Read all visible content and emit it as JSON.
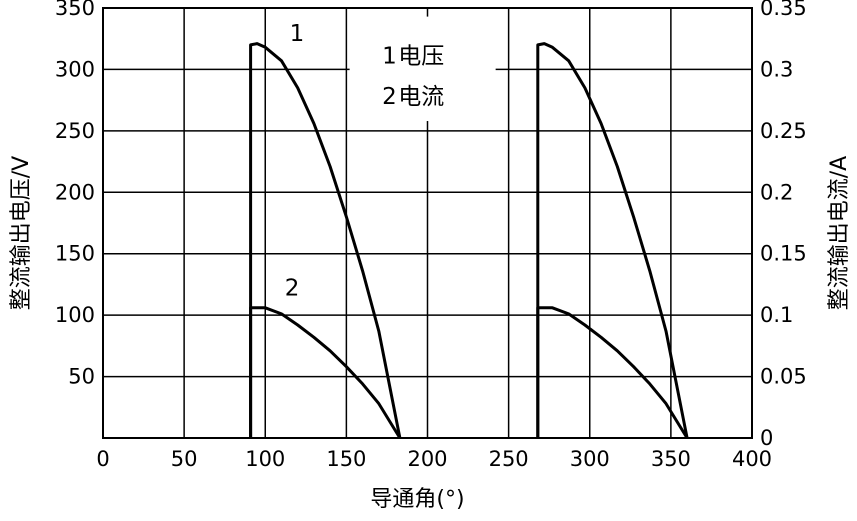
{
  "chart_data": {
    "type": "line",
    "xlabel": "导通角(°)",
    "ylabel": "整流输出电压/V",
    "y2label": "整流输出电流/A",
    "xlim": [
      0,
      400
    ],
    "ylim": [
      0,
      350
    ],
    "y2lim": [
      0,
      0.35
    ],
    "xticks": [
      "0",
      "50",
      "100",
      "150",
      "200",
      "250",
      "300",
      "350",
      "400"
    ],
    "yticks": [
      "0",
      "50",
      "100",
      "150",
      "200",
      "250",
      "300",
      "350"
    ],
    "y2ticks": [
      "0",
      "0.05",
      "0.1",
      "0.15",
      "0.2",
      "0.25",
      "0.3",
      "0.35"
    ],
    "grid": true,
    "legend": {
      "position": "top-center",
      "entries": [
        {
          "key": "1",
          "label": "电压"
        },
        {
          "key": "2",
          "label": "电流"
        }
      ]
    },
    "series": [
      {
        "name": "电压",
        "curve_label": "1",
        "axis": "left",
        "segments": [
          {
            "x": [
              91,
              91,
              95,
              100,
              110,
              120,
              130,
              140,
              150,
              160,
              170,
              183
            ],
            "y": [
              0,
              320,
              321,
              318,
              307,
              285,
              256,
              221,
              180,
              136,
              87,
              0
            ]
          },
          {
            "x": [
              268,
              268,
              272,
              277,
              287,
              297,
              307,
              317,
              327,
              337,
              347,
              360
            ],
            "y": [
              0,
              320,
              321,
              318,
              307,
              285,
              256,
              221,
              180,
              136,
              87,
              0
            ]
          }
        ]
      },
      {
        "name": "电流",
        "curve_label": "2",
        "axis": "right",
        "segments": [
          {
            "x": [
              91,
              91,
              100,
              110,
              120,
              130,
              140,
              150,
              160,
              170,
              183
            ],
            "y": [
              0,
              0.106,
              0.106,
              0.101,
              0.092,
              0.082,
              0.071,
              0.058,
              0.044,
              0.028,
              0
            ]
          },
          {
            "x": [
              268,
              268,
              277,
              287,
              297,
              307,
              317,
              327,
              337,
              347,
              360
            ],
            "y": [
              0,
              0.106,
              0.106,
              0.101,
              0.092,
              0.082,
              0.071,
              0.058,
              0.044,
              0.028,
              0
            ]
          }
        ]
      }
    ]
  }
}
